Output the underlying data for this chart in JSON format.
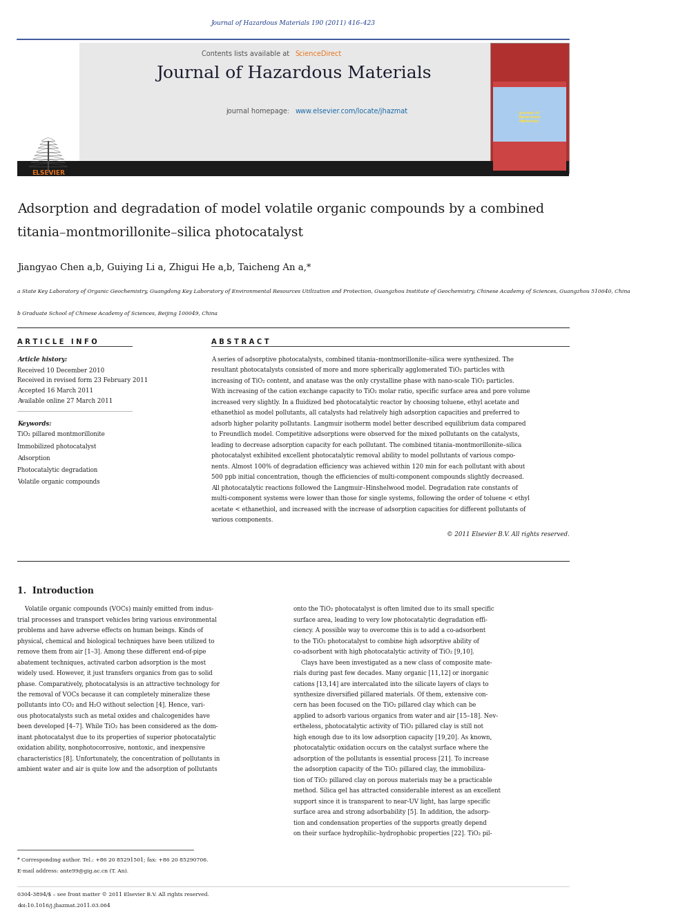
{
  "page_width": 9.92,
  "page_height": 13.23,
  "background_color": "#ffffff",
  "journal_ref": "Journal of Hazardous Materials 190 (2011) 416–423",
  "journal_ref_color": "#1a3a8a",
  "contents_text": "Contents lists available at ",
  "sciencedirect_text": "ScienceDirect",
  "sciencedirect_color": "#e87722",
  "journal_name": "Journal of Hazardous Materials",
  "journal_homepage_prefix": "journal homepage: ",
  "journal_homepage_url": "www.elsevier.com/locate/jhazmat",
  "journal_homepage_color": "#1a6aaa",
  "header_bg": "#e8e8e8",
  "header_border_color": "#1a3a8a",
  "dark_bar_color": "#1a1a1a",
  "article_title_line1": "Adsorption and degradation of model volatile organic compounds by a combined",
  "article_title_line2": "titania–montmorillonite–silica photocatalyst",
  "authors": "Jiangyao Chen a,b, Guiying Li a, Zhigui He a,b, Taicheng An a,*",
  "affil_a": "a State Key Laboratory of Organic Geochemistry, Guangdong Key Laboratory of Environmental Resources Utilization and Protection, Guangzhou Institute of Geochemistry, Chinese Academy of Sciences, Guangzhou 510640, China",
  "affil_b": "b Graduate School of Chinese Academy of Sciences, Beijing 100049, China",
  "article_info_title": "A R T I C L E   I N F O",
  "abstract_title": "A B S T R A C T",
  "article_history_label": "Article history:",
  "received1": "Received 10 December 2010",
  "received2": "Received in revised form 23 February 2011",
  "accepted": "Accepted 16 March 2011",
  "available": "Available online 27 March 2011",
  "keywords_label": "Keywords:",
  "keywords": [
    "TiO₂ pillared montmorillonite",
    "Immobilized photocatalyst",
    "Adsorption",
    "Photocatalytic degradation",
    "Volatile organic compounds"
  ],
  "copyright_text": "© 2011 Elsevier B.V. All rights reserved.",
  "intro_heading": "1.  Introduction",
  "footnote_text": "* Corresponding author. Tel.: +86 20 85291501; fax: +86 20 85290706.",
  "footnote_email": "E-mail address: ante99@gig.ac.cn (T. An).",
  "bottom_text1": "0304-3894/$ – see front matter © 2011 Elsevier B.V. All rights reserved.",
  "bottom_text2": "doi:10.1016/j.jhazmat.2011.03.064"
}
